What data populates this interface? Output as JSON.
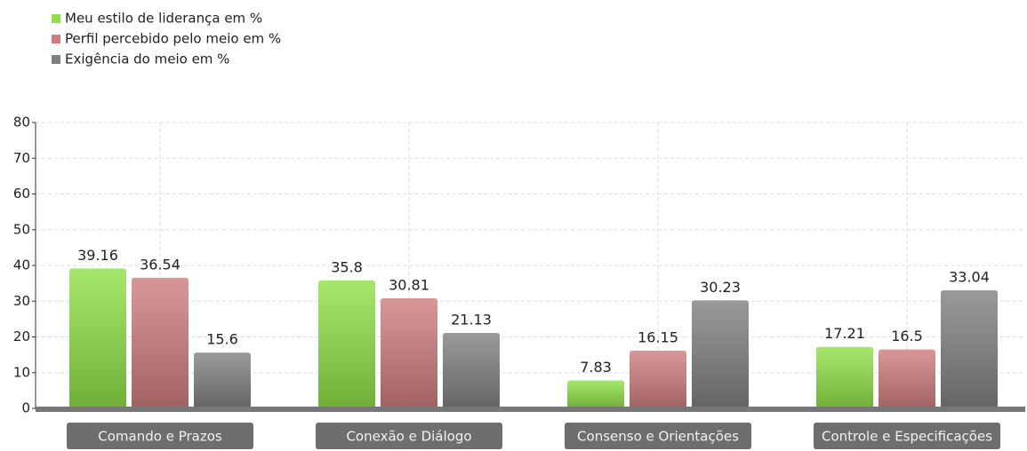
{
  "chart_data": {
    "type": "bar",
    "categories": [
      "Comando e Prazos",
      "Conexão e Diálogo",
      "Consenso e Orientações",
      "Controle e Especificações"
    ],
    "series": [
      {
        "name": "Meu estilo de liderança em %",
        "color": "#8fe048",
        "values": [
          39.16,
          35.8,
          7.83,
          17.21
        ]
      },
      {
        "name": "Perfil percebido pelo meio em %",
        "color": "#cf7d7d",
        "values": [
          36.54,
          30.81,
          16.15,
          16.5
        ]
      },
      {
        "name": "Exigência do meio em %",
        "color": "#808080",
        "values": [
          15.6,
          21.13,
          30.23,
          33.04
        ]
      }
    ],
    "ylim": [
      0,
      80
    ],
    "yticks": [
      0,
      10,
      20,
      30,
      40,
      50,
      60,
      70,
      80
    ],
    "grid": true,
    "legend": "top-left"
  }
}
